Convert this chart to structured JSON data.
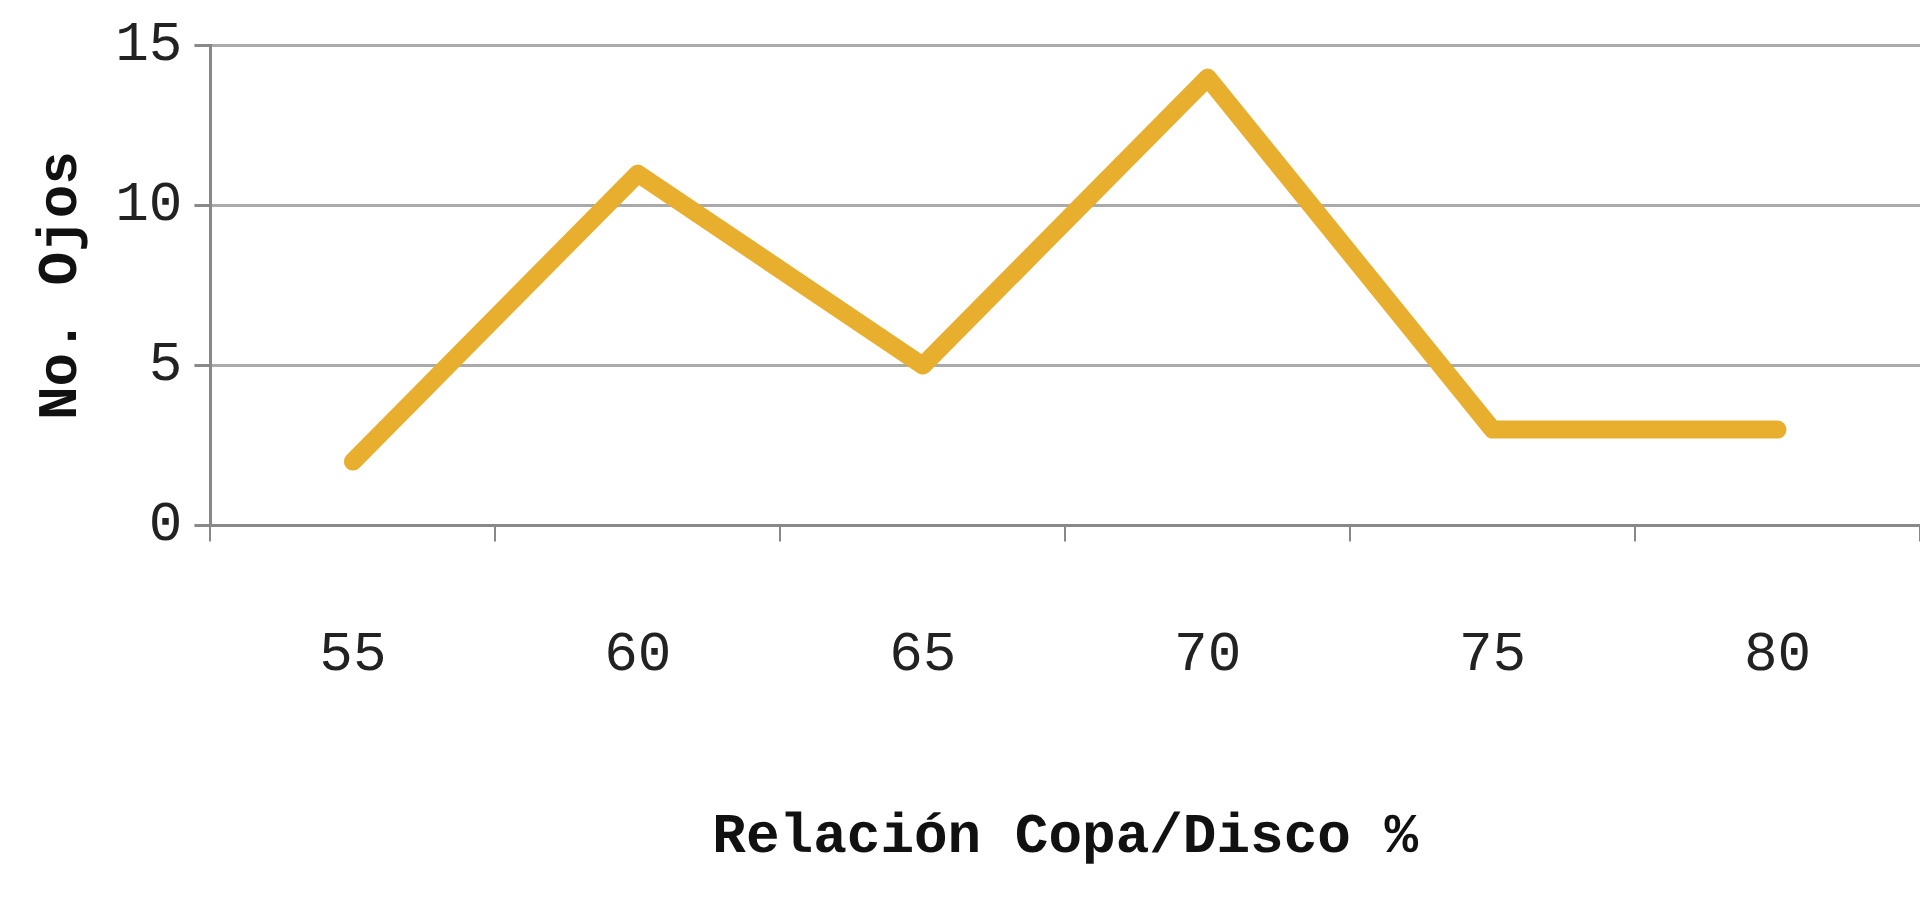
{
  "chart_data": {
    "type": "line",
    "xlabel": "Relación Copa/Disco %",
    "ylabel": "No. Ojos",
    "categories": [
      "55",
      "60",
      "65",
      "70",
      "75",
      "80"
    ],
    "series": [
      {
        "color": "#e8ae2e",
        "values": [
          2,
          11,
          5,
          14,
          3,
          3
        ]
      }
    ],
    "ylim": [
      0,
      15
    ],
    "yticks": [
      0,
      5,
      10,
      15
    ],
    "grid": "y",
    "legend": false,
    "marker": "none",
    "line_style": "solid"
  }
}
